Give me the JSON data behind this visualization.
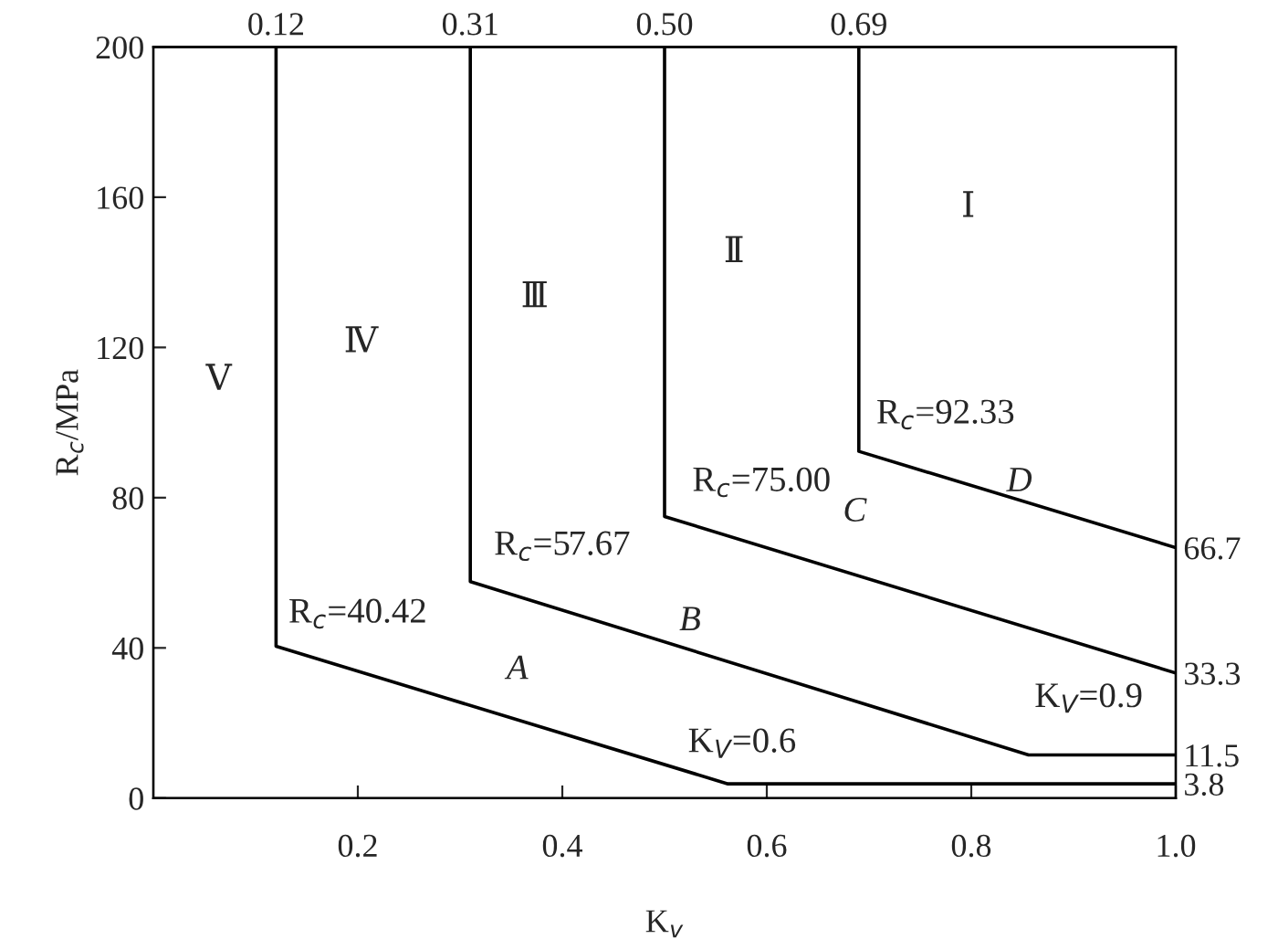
{
  "chart_data": {
    "type": "line",
    "xlabel": "K$_{v}$",
    "ylabel": "R$_{c}$/MPa",
    "xlim": [
      0,
      1.0
    ],
    "xticks": [
      0.2,
      0.4,
      0.6,
      0.8,
      {
        "value": 1.0,
        "label": "1.0"
      }
    ],
    "ylim": [
      0,
      200
    ],
    "yticks": [
      0,
      40,
      80,
      120,
      160,
      200
    ],
    "x2lim": [
      0,
      1.0
    ],
    "x2ticks": [
      0.12,
      0.31,
      {
        "value": 0.5,
        "label": "0.50"
      },
      0.69
    ],
    "y2lim": [
      0,
      200
    ],
    "y2ticks": [
      66.7,
      33.3,
      11.5,
      3.8
    ],
    "grid": false,
    "legend": false,
    "marker": "none",
    "line_style": "solid",
    "series": [
      {
        "color": "#000000",
        "x": [
          0.12,
          0.12,
          0.562,
          1.0
        ],
        "values": [
          200,
          40.42,
          3.8,
          3.8
        ]
      },
      {
        "color": "#000000",
        "x": [
          0.31,
          0.31,
          0.856,
          1.0
        ],
        "values": [
          200,
          57.67,
          11.5,
          11.5
        ]
      },
      {
        "color": "#000000",
        "x": [
          0.5,
          0.5,
          1.0
        ],
        "values": [
          200,
          75.0,
          33.3
        ]
      },
      {
        "color": "#000000",
        "x": [
          0.69,
          0.69,
          1.0
        ],
        "values": [
          200,
          92.33,
          66.7
        ]
      }
    ],
    "annotations": [
      "A",
      "B",
      "C",
      "D",
      "R$_{c}$=40.42",
      "R$_{c}$=57.67",
      "R$_{c}$=75.00",
      "R$_{c}$=92.33",
      "K$_{V}$=0.6",
      "K$_{V}$=0.9",
      "Ⅴ",
      "Ⅳ",
      "Ⅲ",
      "Ⅱ",
      "Ⅰ"
    ]
  }
}
